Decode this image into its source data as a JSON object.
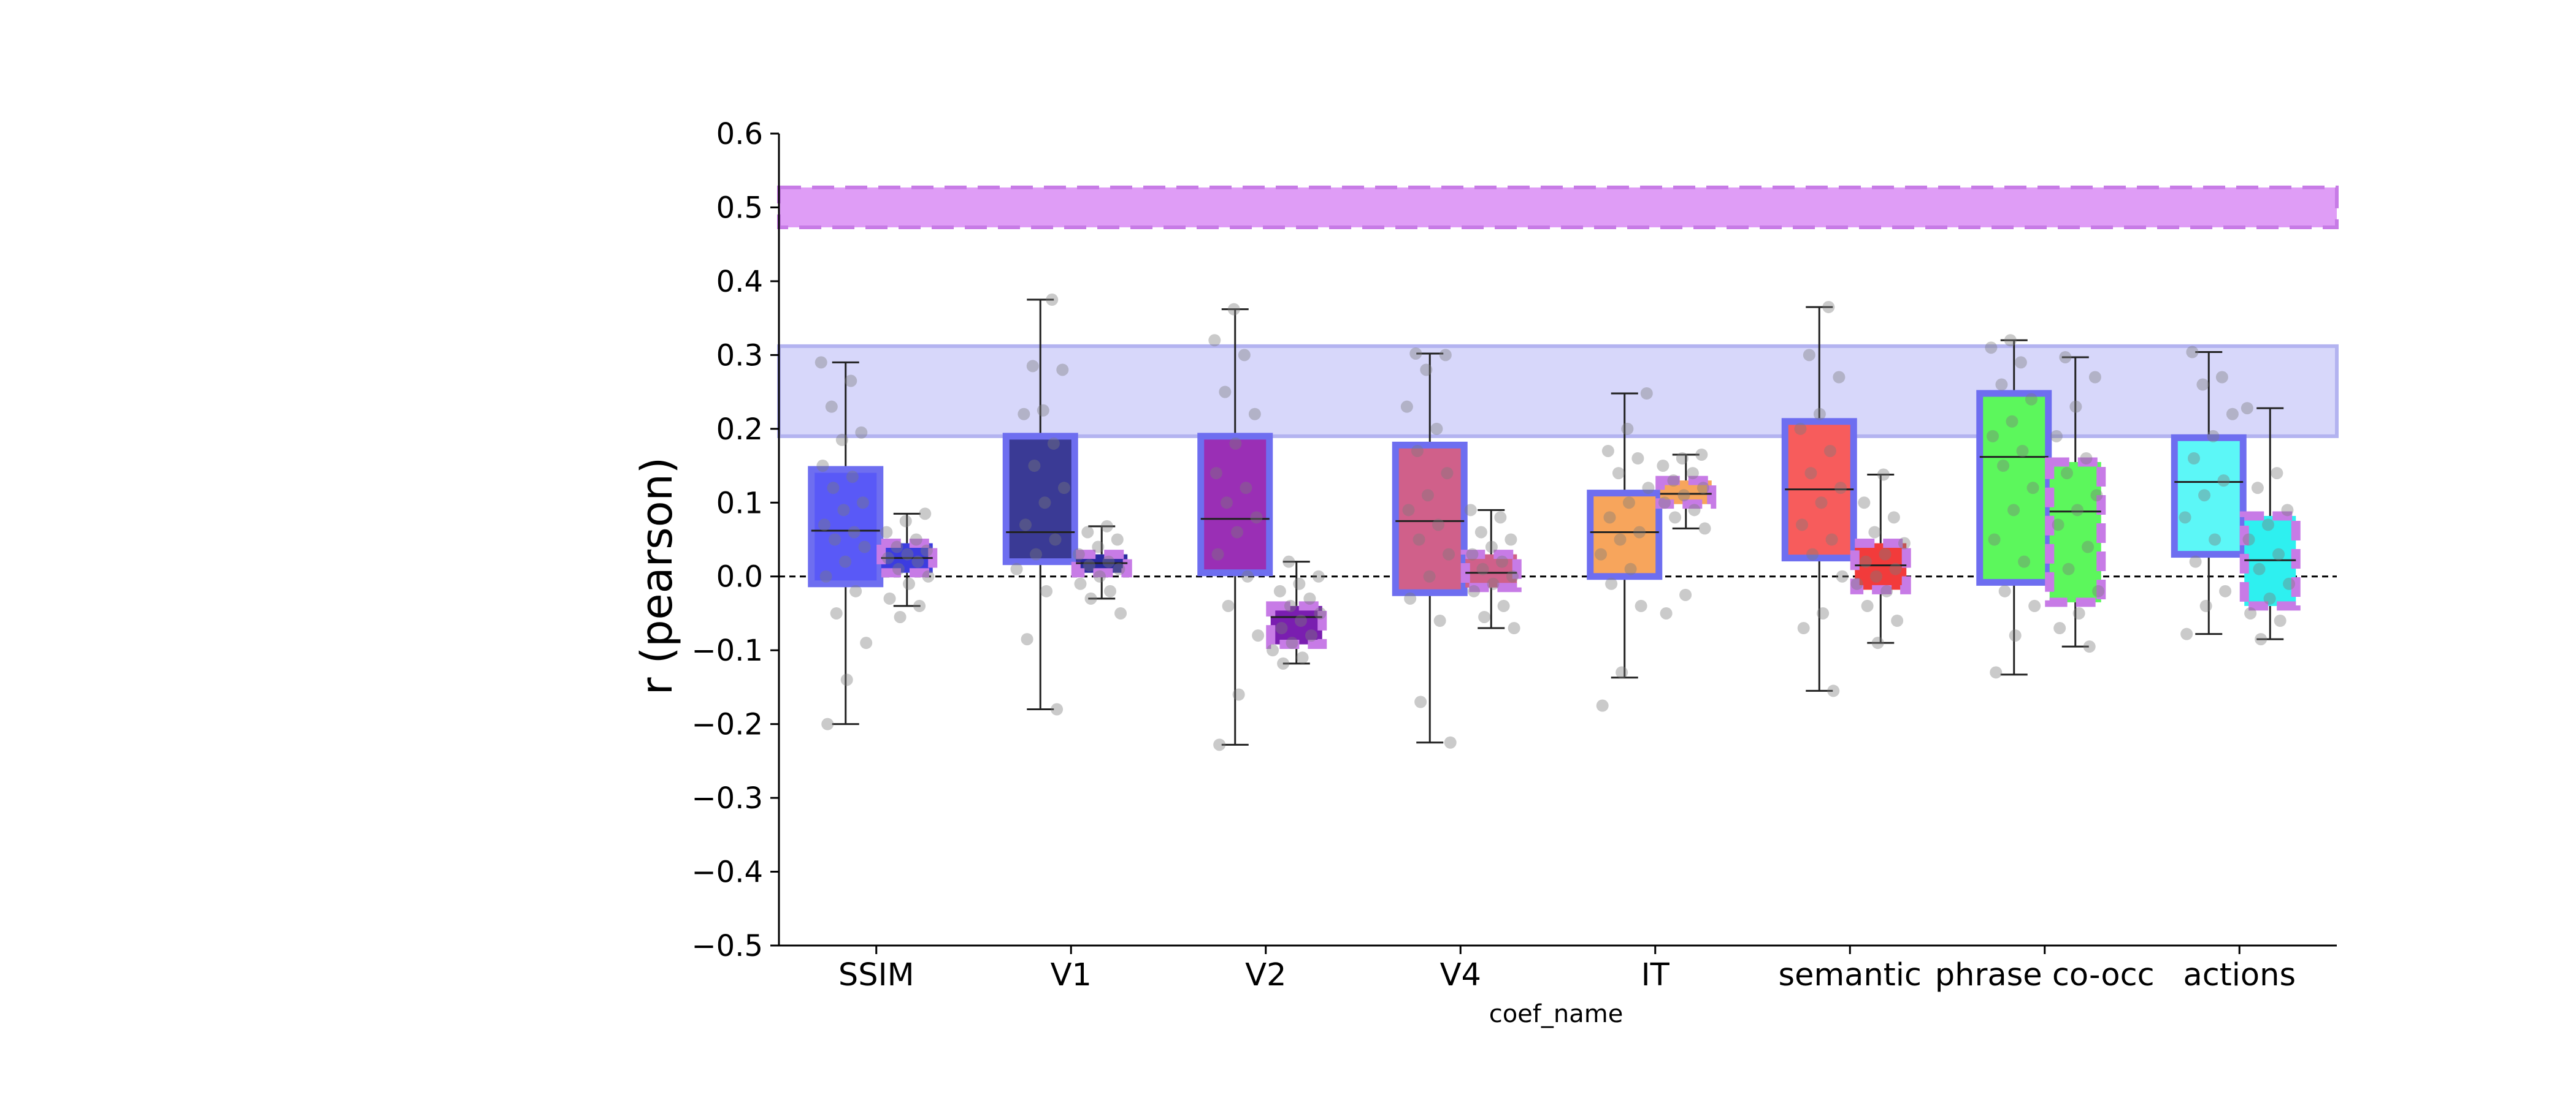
{
  "chart_data": {
    "type": "box",
    "title": "",
    "xlabel": "coef_name",
    "ylabel": "r (pearson)",
    "ylim": [
      -0.5,
      0.6
    ],
    "yticks": [
      0.6,
      0.5,
      0.4,
      0.3,
      0.2,
      0.1,
      0.0,
      -0.1,
      -0.2,
      -0.3,
      -0.4,
      -0.5
    ],
    "ytick_labels": [
      "0.6",
      "0.5",
      "0.4",
      "0.3",
      "0.2",
      "0.1",
      "0.0",
      "−0.1",
      "−0.2",
      "−0.3",
      "−0.4",
      "−0.5"
    ],
    "categories": [
      "SSIM",
      "V1",
      "V2",
      "V4",
      "IT",
      "semantic",
      "phrase co-occ",
      "actions"
    ],
    "reference_line": {
      "y": 0.0,
      "style": "dashed",
      "color": "#000000"
    },
    "bands": [
      {
        "low": 0.473,
        "high": 0.527,
        "color": "#d98cf5",
        "edge": "#c77be6",
        "style": "dashed"
      },
      {
        "low": 0.19,
        "high": 0.312,
        "color": "#d3d3fa",
        "edge": "#b3b3f0",
        "style": "solid"
      }
    ],
    "edge_colors": {
      "solid": "#6e6ef0",
      "dashed": "#c77be6"
    },
    "boxes": [
      {
        "category": "SSIM",
        "slot": "left",
        "fill": "#5959f7",
        "edge": "solid",
        "whislo": -0.2,
        "q1": -0.01,
        "med": 0.062,
        "q3": 0.145,
        "whishi": 0.29,
        "points": [
          0.29,
          0.265,
          0.23,
          0.195,
          0.185,
          0.15,
          0.135,
          0.12,
          0.1,
          0.09,
          0.07,
          0.06,
          0.05,
          0.04,
          0.02,
          0.0,
          -0.02,
          -0.05,
          -0.09,
          -0.14,
          -0.2
        ]
      },
      {
        "category": "SSIM",
        "slot": "right",
        "fill": "#3c3ce0",
        "edge": "dashed",
        "whislo": -0.04,
        "q1": 0.005,
        "med": 0.025,
        "q3": 0.045,
        "whishi": 0.085,
        "points": [
          0.085,
          0.075,
          0.06,
          0.05,
          0.04,
          0.035,
          0.03,
          0.025,
          0.02,
          0.01,
          0.0,
          -0.01,
          -0.03,
          -0.04,
          -0.055
        ]
      },
      {
        "category": "V1",
        "slot": "left",
        "fill": "#3a3a95",
        "edge": "solid",
        "whislo": -0.18,
        "q1": 0.02,
        "med": 0.06,
        "q3": 0.19,
        "whishi": 0.375,
        "points": [
          0.375,
          0.285,
          0.28,
          0.225,
          0.22,
          0.18,
          0.15,
          0.12,
          0.1,
          0.07,
          0.05,
          0.03,
          0.01,
          -0.02,
          -0.085,
          -0.18
        ]
      },
      {
        "category": "V1",
        "slot": "right",
        "fill": "#2a2aa0",
        "edge": "dashed",
        "whislo": -0.03,
        "q1": 0.005,
        "med": 0.018,
        "q3": 0.03,
        "whishi": 0.068,
        "points": [
          0.068,
          0.06,
          0.05,
          0.04,
          0.03,
          0.02,
          0.015,
          0.01,
          0.0,
          -0.01,
          -0.02,
          -0.03,
          -0.05
        ]
      },
      {
        "category": "V2",
        "slot": "left",
        "fill": "#9a2fb5",
        "edge": "solid",
        "whislo": -0.228,
        "q1": 0.005,
        "med": 0.078,
        "q3": 0.19,
        "whishi": 0.362,
        "points": [
          0.362,
          0.32,
          0.3,
          0.25,
          0.22,
          0.18,
          0.14,
          0.12,
          0.1,
          0.08,
          0.06,
          0.03,
          0.0,
          -0.04,
          -0.08,
          -0.16,
          -0.228
        ]
      },
      {
        "category": "V2",
        "slot": "right",
        "fill": "#7a1eb0",
        "edge": "dashed",
        "whislo": -0.118,
        "q1": -0.092,
        "med": -0.055,
        "q3": -0.04,
        "whishi": 0.02,
        "points": [
          0.02,
          0.0,
          -0.01,
          -0.02,
          -0.03,
          -0.04,
          -0.05,
          -0.06,
          -0.07,
          -0.08,
          -0.09,
          -0.1,
          -0.11,
          -0.118
        ]
      },
      {
        "category": "V4",
        "slot": "left",
        "fill": "#d0608a",
        "edge": "solid",
        "whislo": -0.225,
        "q1": -0.022,
        "med": 0.075,
        "q3": 0.178,
        "whishi": 0.302,
        "points": [
          0.302,
          0.3,
          0.28,
          0.23,
          0.2,
          0.17,
          0.14,
          0.11,
          0.09,
          0.07,
          0.05,
          0.03,
          0.0,
          -0.03,
          -0.06,
          -0.17,
          -0.225
        ]
      },
      {
        "category": "V4",
        "slot": "right",
        "fill": "#d0608a",
        "edge": "dashed",
        "whislo": -0.07,
        "q1": -0.015,
        "med": 0.005,
        "q3": 0.03,
        "whishi": 0.09,
        "points": [
          0.09,
          0.08,
          0.06,
          0.05,
          0.04,
          0.03,
          0.02,
          0.01,
          0.0,
          -0.01,
          -0.02,
          -0.04,
          -0.055,
          -0.07
        ]
      },
      {
        "category": "IT",
        "slot": "left",
        "fill": "#f7a55c",
        "edge": "solid",
        "whislo": -0.137,
        "q1": 0.0,
        "med": 0.06,
        "q3": 0.113,
        "whishi": 0.248,
        "points": [
          0.248,
          0.2,
          0.17,
          0.16,
          0.14,
          0.12,
          0.1,
          0.08,
          0.06,
          0.05,
          0.03,
          0.01,
          -0.01,
          -0.04,
          -0.13,
          -0.175
        ]
      },
      {
        "category": "IT",
        "slot": "right",
        "fill": "#f7a55c",
        "edge": "dashed",
        "whislo": 0.065,
        "q1": 0.098,
        "med": 0.112,
        "q3": 0.13,
        "whishi": 0.165,
        "points": [
          0.165,
          0.16,
          0.15,
          0.14,
          0.13,
          0.12,
          0.11,
          0.1,
          0.09,
          0.08,
          0.065,
          -0.025,
          -0.05
        ]
      },
      {
        "category": "semantic",
        "slot": "left",
        "fill": "#f75c5c",
        "edge": "solid",
        "whislo": -0.155,
        "q1": 0.025,
        "med": 0.118,
        "q3": 0.21,
        "whishi": 0.365,
        "points": [
          0.365,
          0.3,
          0.27,
          0.22,
          0.2,
          0.17,
          0.14,
          0.12,
          0.1,
          0.07,
          0.05,
          0.03,
          0.0,
          -0.05,
          -0.07,
          -0.155
        ]
      },
      {
        "category": "semantic",
        "slot": "right",
        "fill": "#f23b3b",
        "edge": "dashed",
        "whislo": -0.09,
        "q1": -0.018,
        "med": 0.015,
        "q3": 0.045,
        "whishi": 0.138,
        "points": [
          0.138,
          0.1,
          0.08,
          0.06,
          0.045,
          0.03,
          0.02,
          0.01,
          0.0,
          -0.01,
          -0.02,
          -0.04,
          -0.06,
          -0.09
        ]
      },
      {
        "category": "phrase co-occ",
        "slot": "left",
        "fill": "#5cf75c",
        "edge": "solid",
        "whislo": -0.133,
        "q1": -0.008,
        "med": 0.162,
        "q3": 0.248,
        "whishi": 0.32,
        "points": [
          0.32,
          0.31,
          0.29,
          0.26,
          0.24,
          0.21,
          0.19,
          0.17,
          0.15,
          0.12,
          0.09,
          0.05,
          0.02,
          -0.02,
          -0.04,
          -0.08,
          -0.13
        ]
      },
      {
        "category": "phrase co-occ",
        "slot": "right",
        "fill": "#5cf75c",
        "edge": "dashed",
        "whislo": -0.095,
        "q1": -0.035,
        "med": 0.088,
        "q3": 0.155,
        "whishi": 0.297,
        "points": [
          0.297,
          0.27,
          0.23,
          0.19,
          0.16,
          0.14,
          0.11,
          0.09,
          0.07,
          0.04,
          0.01,
          -0.02,
          -0.05,
          -0.07,
          -0.095
        ]
      },
      {
        "category": "actions",
        "slot": "left",
        "fill": "#5cf7f7",
        "edge": "solid",
        "whislo": -0.078,
        "q1": 0.03,
        "med": 0.128,
        "q3": 0.188,
        "whishi": 0.304,
        "points": [
          0.304,
          0.27,
          0.26,
          0.22,
          0.19,
          0.16,
          0.13,
          0.11,
          0.08,
          0.05,
          0.02,
          -0.02,
          -0.04,
          -0.078
        ]
      },
      {
        "category": "actions",
        "slot": "right",
        "fill": "#2ef0f0",
        "edge": "dashed",
        "whislo": -0.085,
        "q1": -0.04,
        "med": 0.022,
        "q3": 0.082,
        "whishi": 0.228,
        "points": [
          0.228,
          0.14,
          0.12,
          0.09,
          0.07,
          0.05,
          0.03,
          0.01,
          -0.01,
          -0.03,
          -0.05,
          -0.06,
          -0.085
        ]
      }
    ]
  }
}
